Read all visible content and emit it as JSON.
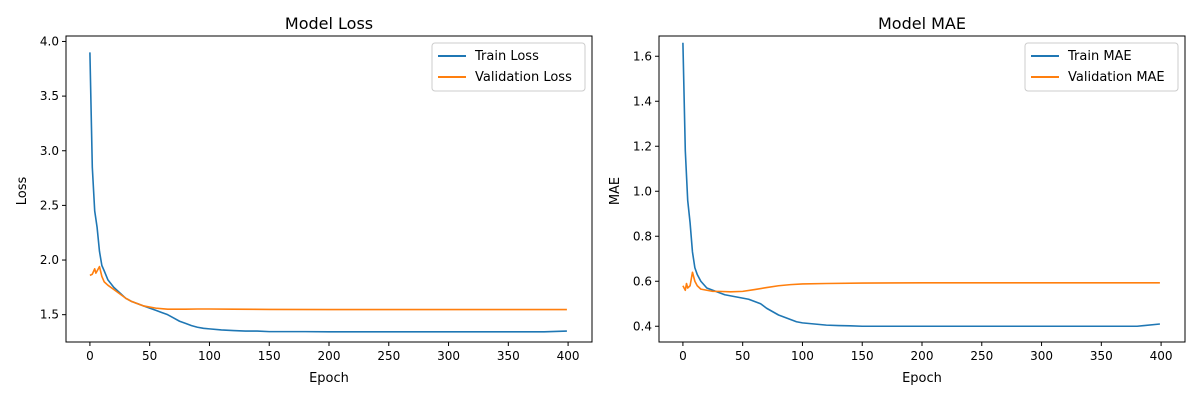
{
  "chart_data": [
    {
      "type": "line",
      "title": "Model Loss",
      "xlabel": "Epoch",
      "ylabel": "Loss",
      "xlim": [
        -20,
        420
      ],
      "ylim": [
        1.25,
        4.05
      ],
      "xticks": [
        0,
        50,
        100,
        150,
        200,
        250,
        300,
        350,
        400
      ],
      "yticks": [
        1.5,
        2.0,
        2.5,
        3.0,
        3.5,
        4.0
      ],
      "ytick_labels": [
        "1.5",
        "2.0",
        "2.5",
        "3.0",
        "3.5",
        "4.0"
      ],
      "grid": false,
      "legend_position": "top-right",
      "series": [
        {
          "name": "Train Loss",
          "color": "#1f77b4",
          "x": [
            0,
            2,
            4,
            6,
            8,
            10,
            12,
            15,
            20,
            25,
            30,
            35,
            40,
            45,
            50,
            55,
            60,
            65,
            70,
            75,
            80,
            85,
            90,
            95,
            100,
            110,
            120,
            130,
            140,
            150,
            160,
            180,
            200,
            220,
            240,
            260,
            280,
            300,
            320,
            340,
            360,
            380,
            399
          ],
          "y": [
            3.9,
            2.85,
            2.45,
            2.3,
            2.08,
            1.95,
            1.9,
            1.82,
            1.75,
            1.7,
            1.65,
            1.62,
            1.6,
            1.58,
            1.56,
            1.54,
            1.52,
            1.5,
            1.47,
            1.44,
            1.42,
            1.4,
            1.385,
            1.375,
            1.37,
            1.36,
            1.355,
            1.35,
            1.35,
            1.345,
            1.345,
            1.345,
            1.343,
            1.343,
            1.343,
            1.343,
            1.343,
            1.343,
            1.343,
            1.343,
            1.343,
            1.343,
            1.35
          ]
        },
        {
          "name": "Validation Loss",
          "color": "#ff7f0e",
          "x": [
            0,
            2,
            4,
            5,
            6,
            8,
            10,
            12,
            15,
            20,
            25,
            30,
            35,
            40,
            45,
            50,
            55,
            60,
            65,
            70,
            80,
            90,
            100,
            120,
            150,
            200,
            250,
            300,
            350,
            399
          ],
          "y": [
            1.86,
            1.87,
            1.92,
            1.88,
            1.9,
            1.94,
            1.85,
            1.8,
            1.77,
            1.73,
            1.69,
            1.65,
            1.62,
            1.6,
            1.58,
            1.57,
            1.56,
            1.555,
            1.55,
            1.55,
            1.55,
            1.552,
            1.552,
            1.55,
            1.548,
            1.547,
            1.547,
            1.547,
            1.547,
            1.547
          ]
        }
      ]
    },
    {
      "type": "line",
      "title": "Model MAE",
      "xlabel": "Epoch",
      "ylabel": "MAE",
      "xlim": [
        -20,
        420
      ],
      "ylim": [
        0.33,
        1.69
      ],
      "xticks": [
        0,
        50,
        100,
        150,
        200,
        250,
        300,
        350,
        400
      ],
      "yticks": [
        0.4,
        0.6,
        0.8,
        1.0,
        1.2,
        1.4,
        1.6
      ],
      "ytick_labels": [
        "0.4",
        "0.6",
        "0.8",
        "1.0",
        "1.2",
        "1.4",
        "1.6"
      ],
      "grid": false,
      "legend_position": "top-right",
      "series": [
        {
          "name": "Train MAE",
          "color": "#1f77b4",
          "x": [
            0,
            2,
            4,
            6,
            8,
            10,
            12,
            15,
            20,
            25,
            30,
            35,
            40,
            45,
            50,
            55,
            60,
            65,
            70,
            75,
            80,
            85,
            90,
            95,
            100,
            110,
            120,
            130,
            140,
            150,
            160,
            180,
            200,
            220,
            240,
            260,
            280,
            300,
            320,
            340,
            360,
            380,
            399
          ],
          "y": [
            1.66,
            1.18,
            0.96,
            0.86,
            0.73,
            0.66,
            0.63,
            0.6,
            0.57,
            0.56,
            0.55,
            0.54,
            0.535,
            0.53,
            0.525,
            0.52,
            0.51,
            0.5,
            0.48,
            0.465,
            0.45,
            0.44,
            0.43,
            0.42,
            0.415,
            0.41,
            0.405,
            0.403,
            0.402,
            0.4,
            0.4,
            0.4,
            0.4,
            0.4,
            0.4,
            0.4,
            0.4,
            0.4,
            0.4,
            0.4,
            0.4,
            0.4,
            0.41
          ]
        },
        {
          "name": "Validation MAE",
          "color": "#ff7f0e",
          "x": [
            0,
            2,
            3,
            4,
            6,
            8,
            10,
            12,
            15,
            20,
            25,
            30,
            40,
            50,
            60,
            70,
            80,
            90,
            100,
            120,
            150,
            200,
            250,
            300,
            350,
            399
          ],
          "y": [
            0.58,
            0.56,
            0.59,
            0.57,
            0.58,
            0.64,
            0.6,
            0.58,
            0.565,
            0.56,
            0.555,
            0.555,
            0.553,
            0.555,
            0.563,
            0.572,
            0.58,
            0.585,
            0.588,
            0.59,
            0.592,
            0.593,
            0.593,
            0.593,
            0.593,
            0.593
          ]
        }
      ]
    }
  ]
}
